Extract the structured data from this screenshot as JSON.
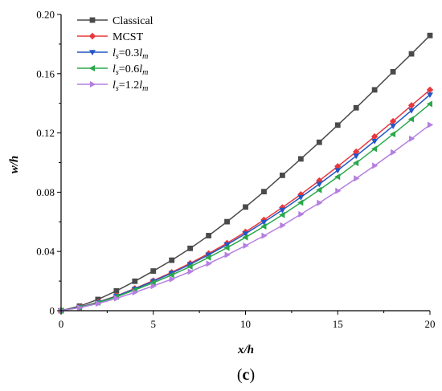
{
  "chart_data": {
    "type": "line",
    "xlabel": "x/h",
    "ylabel": "w/h",
    "xlim": [
      0,
      20
    ],
    "ylim": [
      0,
      0.2
    ],
    "xticks": [
      "0",
      "5",
      "10",
      "15",
      "20"
    ],
    "yticks": [
      "0",
      "0.04",
      "0.08",
      "0.12",
      "0.16",
      "0.20"
    ],
    "x": [
      0,
      1,
      2,
      3,
      4,
      5,
      6,
      7,
      8,
      9,
      10,
      11,
      12,
      13,
      14,
      15,
      16,
      17,
      18,
      19,
      20
    ],
    "legend_position": "top-left",
    "series": [
      {
        "name": "Classical",
        "color": "#4a4a4a",
        "marker": "square",
        "values": [
          0,
          0.0031,
          0.0076,
          0.0134,
          0.0199,
          0.0268,
          0.0341,
          0.0421,
          0.0507,
          0.0601,
          0.07,
          0.0804,
          0.0914,
          0.1025,
          0.1137,
          0.1253,
          0.137,
          0.1491,
          0.1613,
          0.1734,
          0.1858
        ]
      },
      {
        "name": "MCST",
        "color": "#e8383d",
        "marker": "diamond",
        "values": [
          0,
          0.0024,
          0.0058,
          0.01,
          0.015,
          0.0203,
          0.0259,
          0.032,
          0.0386,
          0.0456,
          0.0532,
          0.0613,
          0.0697,
          0.0785,
          0.0878,
          0.0974,
          0.1073,
          0.1176,
          0.1279,
          0.1386,
          0.1491
        ]
      },
      {
        "name_parts": [
          "l",
          "s",
          "=0.3",
          "l",
          "m"
        ],
        "color": "#2456c4",
        "marker": "triangle-down",
        "values": [
          0,
          0.0023,
          0.0056,
          0.0098,
          0.0147,
          0.0199,
          0.0254,
          0.0313,
          0.0377,
          0.0446,
          0.052,
          0.0598,
          0.068,
          0.0766,
          0.0855,
          0.0948,
          0.1045,
          0.1145,
          0.1247,
          0.1352,
          0.1458
        ]
      },
      {
        "name_parts": [
          "l",
          "s",
          "=0.6",
          "l",
          "m"
        ],
        "color": "#2aa84a",
        "marker": "triangle-left",
        "values": [
          0,
          0.0022,
          0.0054,
          0.0094,
          0.014,
          0.0189,
          0.0241,
          0.0298,
          0.0359,
          0.0425,
          0.0495,
          0.0569,
          0.0647,
          0.073,
          0.0815,
          0.0904,
          0.0997,
          0.1093,
          0.1192,
          0.1293,
          0.1396
        ]
      },
      {
        "name_parts": [
          "l",
          "s",
          "=1.2",
          "l",
          "m"
        ],
        "color": "#b57fe0",
        "marker": "triangle-right",
        "values": [
          0,
          0.002,
          0.0048,
          0.0083,
          0.0124,
          0.0167,
          0.0213,
          0.0264,
          0.0318,
          0.0377,
          0.0439,
          0.0506,
          0.0576,
          0.0651,
          0.0728,
          0.0809,
          0.0893,
          0.0979,
          0.1069,
          0.1161,
          0.1255
        ]
      }
    ]
  },
  "caption": {
    "open": "(",
    "letter": "c",
    "close": ")"
  }
}
